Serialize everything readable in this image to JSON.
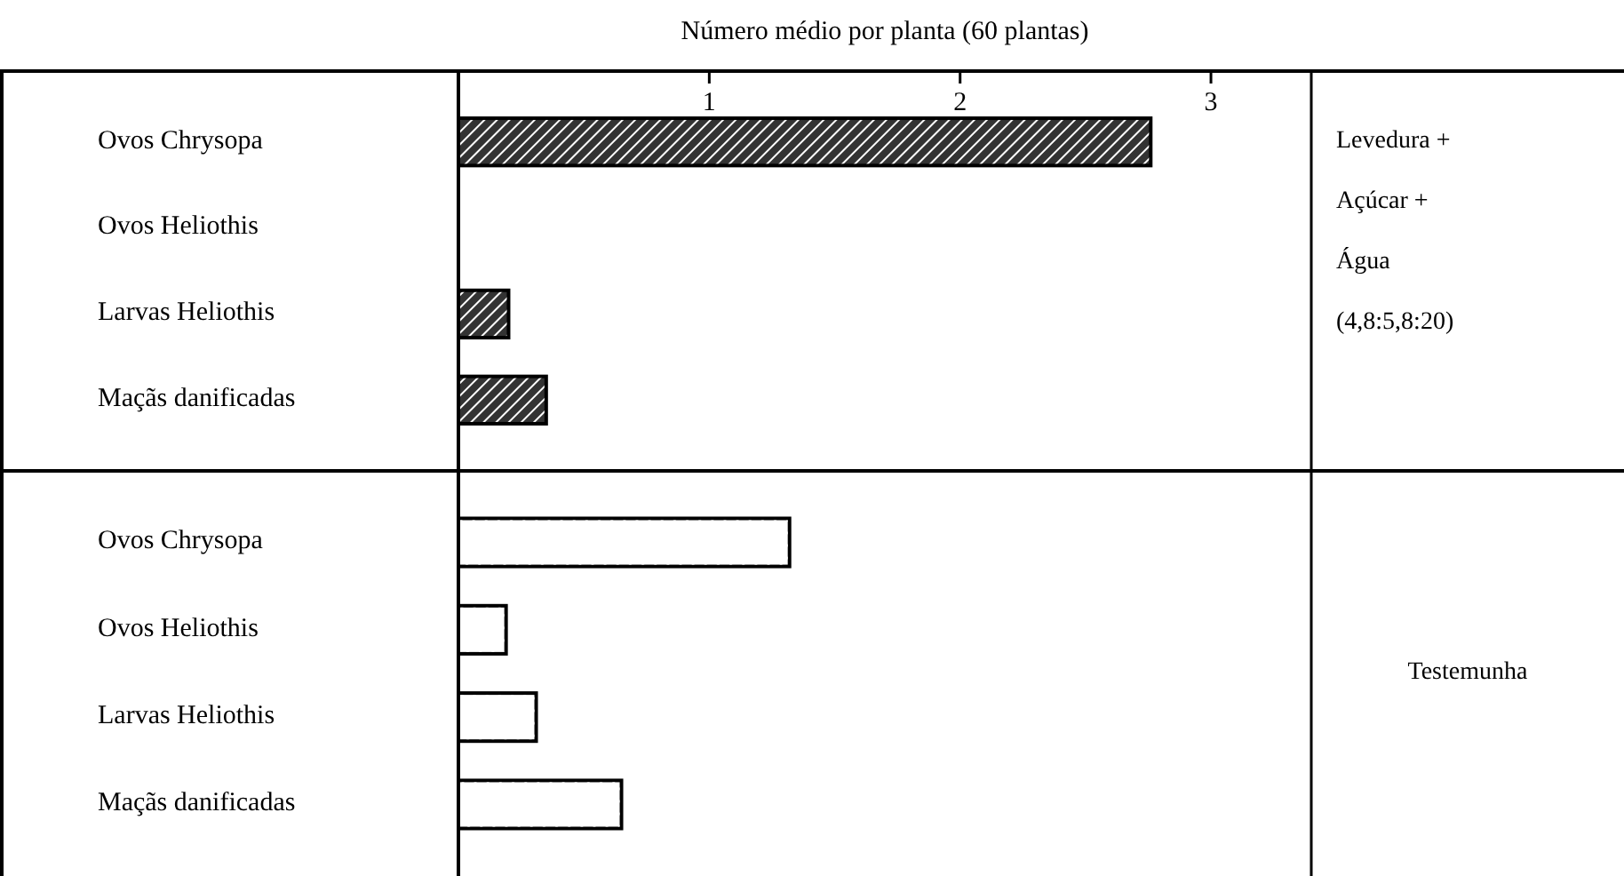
{
  "chart_data": [
    {
      "type": "bar",
      "orientation": "horizontal",
      "title": "Número médio por planta (60 plantas)",
      "categories": [
        "Ovos Chrysopa",
        "Ovos Heliothis",
        "Larvas Heliothis",
        "Maçãs danificadas"
      ],
      "values": [
        2.76,
        0,
        0.2,
        0.35
      ],
      "color": "#333333",
      "xlim": [
        0,
        3.4
      ],
      "xticks": [
        1,
        2,
        3
      ],
      "annotations": [
        "Levedura +",
        "Açúcar +",
        "Água",
        "(4,8:5,8:20)"
      ]
    },
    {
      "type": "bar",
      "orientation": "horizontal",
      "categories": [
        "Ovos Chrysopa",
        "Ovos Heliothis",
        "Larvas Heliothis",
        "Maçãs danificadas"
      ],
      "values": [
        1.32,
        0.19,
        0.31,
        0.65
      ],
      "color": "#ffffff",
      "xlim": [
        0,
        3.4
      ],
      "tick_labels": "y",
      "annotations": [
        "Testemunha"
      ]
    }
  ]
}
